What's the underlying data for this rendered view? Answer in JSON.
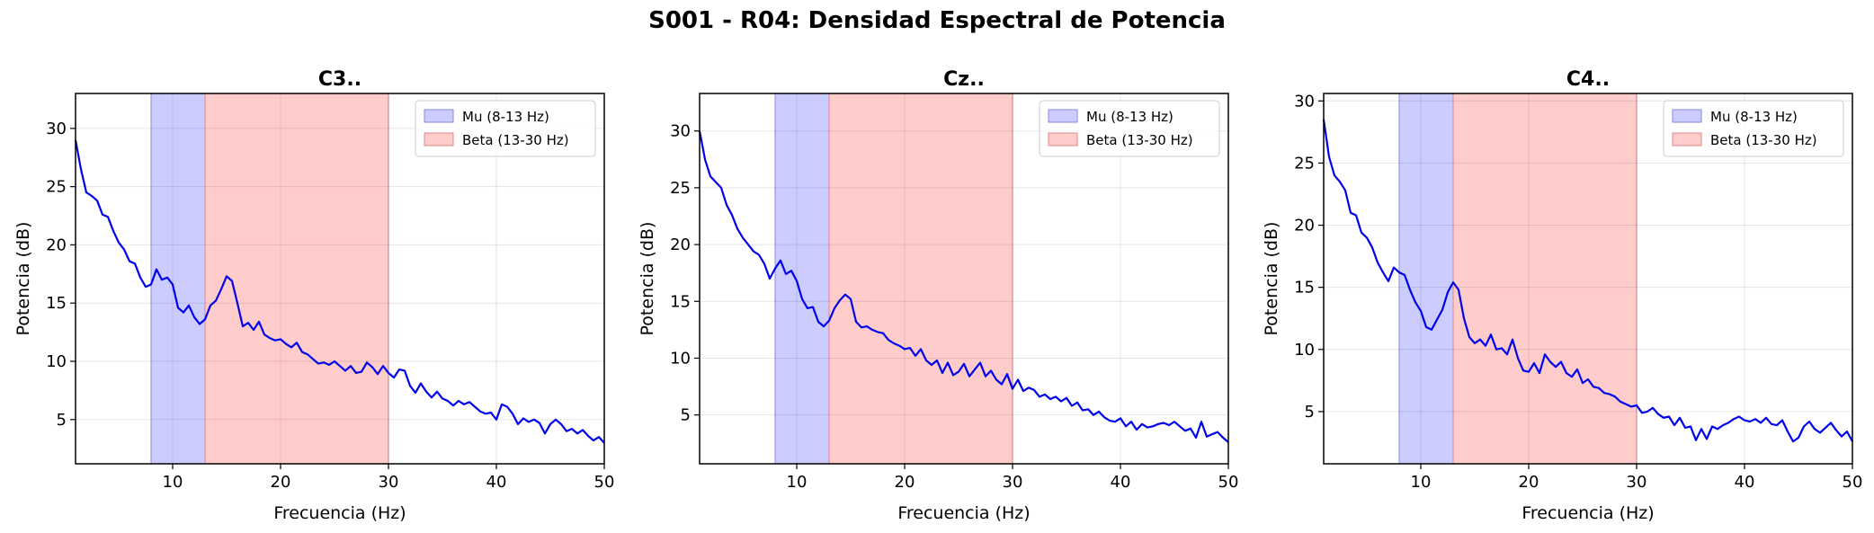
{
  "figure": {
    "title": "S001 - R04: Densidad Espectral de Potencia"
  },
  "colors": {
    "line": "#0000ee",
    "mu_band": "#ccccff",
    "beta_band": "#ffcccc",
    "grid": "#e0e0e0"
  },
  "chart_data": [
    {
      "type": "line",
      "title": "C3..",
      "xlabel": "Frecuencia (Hz)",
      "ylabel": "Potencia (dB)",
      "xlim": [
        1,
        50
      ],
      "ylim": [
        1.2,
        33
      ],
      "xticks": [
        10,
        20,
        30,
        40,
        50
      ],
      "yticks": [
        5,
        10,
        15,
        20,
        25,
        30
      ],
      "grid": true,
      "legend": {
        "placement": "top-right",
        "entries": [
          "Mu (8-13 Hz)",
          "Beta (13-30 Hz)"
        ]
      },
      "bands": [
        {
          "name": "Mu (8-13 Hz)",
          "from": 8,
          "to": 13,
          "color": "#ccccff"
        },
        {
          "name": "Beta (13-30 Hz)",
          "from": 13,
          "to": 30,
          "color": "#ffcccc"
        }
      ],
      "series": [
        {
          "x": [
            1,
            1.5,
            2,
            2.5,
            3,
            3.5,
            4,
            4.5,
            5,
            5.5,
            6,
            6.5,
            7,
            7.5,
            8,
            8.5,
            9,
            9.5,
            10,
            10.5,
            11,
            11.5,
            12,
            12.5,
            13,
            13.5,
            14,
            14.5,
            15,
            15.5,
            16,
            16.5,
            17,
            17.5,
            18,
            18.5,
            19,
            19.5,
            20,
            20.5,
            21,
            21.5,
            22,
            22.5,
            23,
            23.5,
            24,
            24.5,
            25,
            25.5,
            26,
            26.5,
            27,
            27.5,
            28,
            28.5,
            29,
            29.5,
            30,
            30.5,
            31,
            31.5,
            32,
            32.5,
            33,
            33.5,
            34,
            34.5,
            35,
            35.5,
            36,
            36.5,
            37,
            37.5,
            38,
            38.5,
            39,
            39.5,
            40,
            40.5,
            41,
            41.5,
            42,
            42.5,
            43,
            43.5,
            44,
            44.5,
            45,
            45.5,
            46,
            46.5,
            47,
            47.5,
            48,
            48.5,
            49,
            49.5,
            50
          ],
          "y": [
            29,
            26.5,
            24.5,
            24.2,
            23.8,
            22.6,
            22.4,
            21.2,
            20.2,
            19.6,
            18.6,
            18.4,
            17.2,
            16.4,
            16.6,
            17.9,
            17.0,
            17.2,
            16.6,
            14.6,
            14.2,
            14.8,
            13.8,
            13.2,
            13.6,
            14.8,
            15.2,
            16.2,
            17.3,
            16.9,
            15.0,
            13.0,
            13.3,
            12.7,
            13.4,
            12.3,
            12.0,
            11.8,
            11.9,
            11.5,
            11.2,
            11.6,
            10.8,
            10.6,
            10.2,
            9.8,
            9.9,
            9.7,
            10.0,
            9.6,
            9.2,
            9.6,
            9.0,
            9.1,
            9.9,
            9.5,
            8.9,
            9.6,
            9.0,
            8.6,
            9.3,
            9.2,
            7.9,
            7.3,
            8.1,
            7.4,
            6.9,
            7.4,
            6.8,
            6.6,
            6.2,
            6.6,
            6.3,
            6.5,
            6.1,
            5.7,
            5.5,
            5.6,
            5.0,
            6.3,
            6.1,
            5.5,
            4.6,
            5.1,
            4.8,
            5.0,
            4.7,
            3.8,
            4.6,
            5.0,
            4.6,
            4.0,
            4.2,
            3.8,
            4.1,
            3.6,
            3.2,
            3.5,
            3.0
          ]
        }
      ]
    },
    {
      "type": "line",
      "title": "Cz..",
      "xlabel": "Frecuencia (Hz)",
      "ylabel": "Potencia (dB)",
      "xlim": [
        1,
        50
      ],
      "ylim": [
        0.7,
        33.3
      ],
      "xticks": [
        10,
        20,
        30,
        40,
        50
      ],
      "yticks": [
        5,
        10,
        15,
        20,
        25,
        30
      ],
      "grid": true,
      "legend": {
        "placement": "top-right",
        "entries": [
          "Mu (8-13 Hz)",
          "Beta (13-30 Hz)"
        ]
      },
      "bands": [
        {
          "name": "Mu (8-13 Hz)",
          "from": 8,
          "to": 13,
          "color": "#ccccff"
        },
        {
          "name": "Beta (13-30 Hz)",
          "from": 13,
          "to": 30,
          "color": "#ffcccc"
        }
      ],
      "series": [
        {
          "x": [
            1,
            1.5,
            2,
            2.5,
            3,
            3.5,
            4,
            4.5,
            5,
            5.5,
            6,
            6.5,
            7,
            7.5,
            8,
            8.5,
            9,
            9.5,
            10,
            10.5,
            11,
            11.5,
            12,
            12.5,
            13,
            13.5,
            14,
            14.5,
            15,
            15.5,
            16,
            16.5,
            17,
            17.5,
            18,
            18.5,
            19,
            19.5,
            20,
            20.5,
            21,
            21.5,
            22,
            22.5,
            23,
            23.5,
            24,
            24.5,
            25,
            25.5,
            26,
            26.5,
            27,
            27.5,
            28,
            28.5,
            29,
            29.5,
            30,
            30.5,
            31,
            31.5,
            32,
            32.5,
            33,
            33.5,
            34,
            34.5,
            35,
            35.5,
            36,
            36.5,
            37,
            37.5,
            38,
            38.5,
            39,
            39.5,
            40,
            40.5,
            41,
            41.5,
            42,
            42.5,
            43,
            43.5,
            44,
            44.5,
            45,
            45.5,
            46,
            46.5,
            47,
            47.5,
            48,
            48.5,
            49,
            49.5,
            50
          ],
          "y": [
            30,
            27.5,
            26,
            25.5,
            25,
            23.5,
            22.6,
            21.4,
            20.6,
            20.0,
            19.4,
            19.1,
            18.3,
            17.0,
            17.9,
            18.6,
            17.4,
            17.7,
            16.8,
            15.2,
            14.4,
            14.5,
            13.2,
            12.8,
            13.3,
            14.4,
            15.1,
            15.6,
            15.2,
            13.2,
            12.7,
            12.8,
            12.5,
            12.3,
            12.2,
            11.6,
            11.3,
            11.1,
            10.8,
            10.9,
            10.2,
            10.8,
            9.8,
            9.4,
            9.8,
            8.7,
            9.6,
            8.5,
            8.8,
            9.5,
            8.4,
            9.0,
            9.6,
            8.4,
            8.9,
            8.1,
            7.7,
            8.6,
            7.3,
            8.1,
            7.1,
            7.4,
            7.2,
            6.6,
            6.8,
            6.4,
            6.6,
            6.2,
            6.5,
            5.8,
            6.1,
            5.4,
            5.5,
            5.0,
            5.3,
            4.8,
            4.5,
            4.4,
            4.7,
            4.0,
            4.4,
            3.7,
            4.2,
            3.9,
            4.0,
            4.2,
            4.3,
            4.1,
            4.4,
            4.0,
            3.6,
            3.8,
            3.0,
            4.4,
            3.1,
            3.3,
            3.5,
            3.0,
            2.6
          ]
        }
      ]
    },
    {
      "type": "line",
      "title": "C4..",
      "xlabel": "Frecuencia (Hz)",
      "ylabel": "Potencia (dB)",
      "xlim": [
        1,
        50
      ],
      "ylim": [
        0.8,
        30.6
      ],
      "xticks": [
        10,
        20,
        30,
        40,
        50
      ],
      "yticks": [
        5,
        10,
        15,
        20,
        25,
        30
      ],
      "grid": true,
      "legend": {
        "placement": "top-right",
        "entries": [
          "Mu (8-13 Hz)",
          "Beta (13-30 Hz)"
        ]
      },
      "bands": [
        {
          "name": "Mu (8-13 Hz)",
          "from": 8,
          "to": 13,
          "color": "#ccccff"
        },
        {
          "name": "Beta (13-30 Hz)",
          "from": 13,
          "to": 30,
          "color": "#ffcccc"
        }
      ],
      "series": [
        {
          "x": [
            1,
            1.5,
            2,
            2.5,
            3,
            3.5,
            4,
            4.5,
            5,
            5.5,
            6,
            6.5,
            7,
            7.5,
            8,
            8.5,
            9,
            9.5,
            10,
            10.5,
            11,
            11.5,
            12,
            12.5,
            13,
            13.5,
            14,
            14.5,
            15,
            15.5,
            16,
            16.5,
            17,
            17.5,
            18,
            18.5,
            19,
            19.5,
            20,
            20.5,
            21,
            21.5,
            22,
            22.5,
            23,
            23.5,
            24,
            24.5,
            25,
            25.5,
            26,
            26.5,
            27,
            27.5,
            28,
            28.5,
            29,
            29.5,
            30,
            30.5,
            31,
            31.5,
            32,
            32.5,
            33,
            33.5,
            34,
            34.5,
            35,
            35.5,
            36,
            36.5,
            37,
            37.5,
            38,
            38.5,
            39,
            39.5,
            40,
            40.5,
            41,
            41.5,
            42,
            42.5,
            43,
            43.5,
            44,
            44.5,
            45,
            45.5,
            46,
            46.5,
            47,
            47.5,
            48,
            48.5,
            49,
            49.5,
            50
          ],
          "y": [
            28.5,
            25.5,
            24,
            23.5,
            22.8,
            21.0,
            20.8,
            19.4,
            19.0,
            18.2,
            17.0,
            16.2,
            15.5,
            16.6,
            16.2,
            16.0,
            14.8,
            13.8,
            13.1,
            11.8,
            11.6,
            12.4,
            13.2,
            14.6,
            15.4,
            14.8,
            12.5,
            11.0,
            10.5,
            10.8,
            10.3,
            11.2,
            10.0,
            10.1,
            9.6,
            10.8,
            9.3,
            8.3,
            8.2,
            8.9,
            8.1,
            9.6,
            9.0,
            8.6,
            9.0,
            8.1,
            7.8,
            8.4,
            7.3,
            7.6,
            7.0,
            6.9,
            6.5,
            6.4,
            6.2,
            5.8,
            5.6,
            5.4,
            5.5,
            4.9,
            5.0,
            5.3,
            4.8,
            4.5,
            4.6,
            3.9,
            4.5,
            3.7,
            3.8,
            2.7,
            3.6,
            2.8,
            3.8,
            3.6,
            3.9,
            4.1,
            4.4,
            4.6,
            4.3,
            4.2,
            4.4,
            4.1,
            4.5,
            4.0,
            3.9,
            4.3,
            3.4,
            2.6,
            2.9,
            3.8,
            4.2,
            3.6,
            3.3,
            3.7,
            4.1,
            3.5,
            3.0,
            3.4,
            2.6
          ]
        }
      ]
    }
  ]
}
